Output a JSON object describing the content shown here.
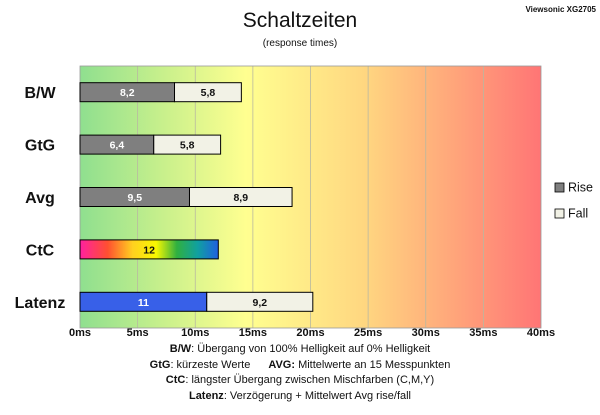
{
  "chart_data": {
    "type": "bar",
    "orientation": "horizontal",
    "stacked": true,
    "title": "Schaltzeiten",
    "subtitle": "(response times)",
    "brand": "Viewsonic XG2705",
    "categories": [
      "B/W",
      "GtG",
      "Avg",
      "CtC",
      "Latenz"
    ],
    "series": [
      {
        "name": "Rise",
        "values": [
          8.2,
          6.4,
          9.5,
          12,
          11
        ],
        "labels": [
          "8,2",
          "6,4",
          "9,5",
          "12",
          "11"
        ]
      },
      {
        "name": "Fall",
        "values": [
          5.8,
          5.8,
          8.9,
          null,
          9.2
        ],
        "labels": [
          "5,8",
          "5,8",
          "8,9",
          "",
          "9,2"
        ]
      }
    ],
    "xlim": [
      0,
      40
    ],
    "xticks": [
      0,
      5,
      10,
      15,
      20,
      25,
      30,
      35,
      40
    ],
    "xtick_labels": [
      "0ms",
      "5ms",
      "10ms",
      "15ms",
      "20ms",
      "25ms",
      "30ms",
      "35ms",
      "40ms"
    ],
    "legend_position": "right",
    "colors": {
      "rise": "#7f7f7f",
      "fall": "#f2f2e6",
      "latenz": "#3860e8",
      "bg_green": "#90e090",
      "bg_yellow": "#ffff90",
      "bg_red": "#ff7878"
    }
  },
  "notes": {
    "line1_key": "B/W",
    "line1_text": ":  Übergang von 100% Helligkeit auf 0% Helligkeit",
    "line2_key_a": "GtG",
    "line2_text_a": ": kürzeste  Werte",
    "line2_key_b": "AVG:",
    "line2_text_b": " Mittelwerte  an 15 Messpunkten",
    "line3_key": "CtC",
    "line3_text": ": längster Übergang  zwischen Mischfarben  (C,M,Y)",
    "line4_key": "Latenz",
    "line4_text": ": Verzögerung  + Mittelwert  Avg rise/fall"
  }
}
